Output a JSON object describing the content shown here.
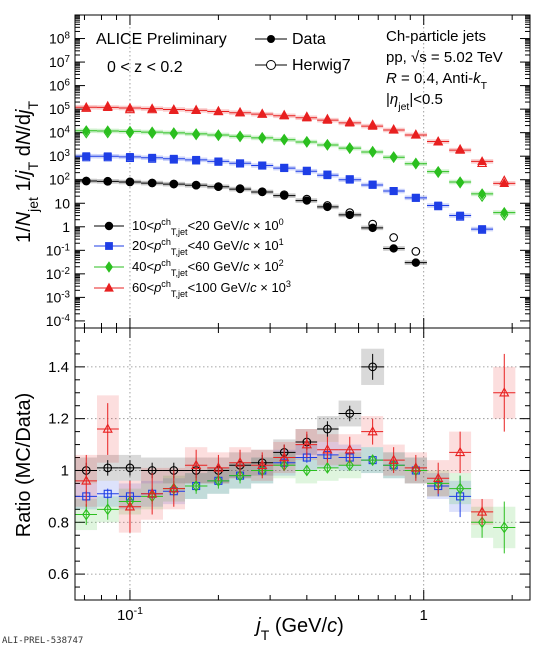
{
  "watermark": "ALI-PREL-538747",
  "chart_data": [
    {
      "type": "scatter",
      "panel": "spectra",
      "x_scale": "log",
      "y_scale": "log",
      "xlim": [
        0.065,
        2.3
      ],
      "ylim": [
        5e-05,
        1000000000.0
      ],
      "ylabel": "1/N_jet 1/j_T dN/dj_T",
      "y_ticklabels": [
        "10^{-4}",
        "10^{-3}",
        "10^{-2}",
        "10^{-1}",
        "1",
        "10",
        "10^{2}",
        "10^{3}",
        "10^{4}",
        "10^{5}",
        "10^{6}",
        "10^{7}",
        "10^{8}"
      ],
      "annotations": {
        "preliminary": "ALICE Preliminary",
        "z_range": "0 < z < 0.2",
        "title": "Ch-particle jets",
        "system": "pp, √s = 5.02 TeV",
        "jet_def": "R = 0.4, Anti-kT",
        "eta_cut": "|η_jet|<0.5"
      },
      "legend_top": {
        "placement": "top-center",
        "entries": [
          {
            "label": "Data",
            "marker": "filled-circle"
          },
          {
            "label": "Herwig7",
            "marker": "open-circle"
          }
        ]
      },
      "legend_bins": {
        "placement": "lower-left",
        "entries": [
          "10<p^{ch}_{T,jet}<20 GeV/c × 10^0",
          "20<p^{ch}_{T,jet}<40 GeV/c × 10^1",
          "40<p^{ch}_{T,jet}<60 GeV/c × 10^2",
          "60<p^{ch}_{T,jet}<100 GeV/c × 10^3"
        ]
      },
      "series": [
        {
          "name": "10<p^{ch}_{T,jet}<20 GeV/c × 10^0",
          "color": "#000000",
          "data_marker": "circle",
          "x": [
            0.071,
            0.084,
            0.1,
            0.119,
            0.141,
            0.168,
            0.2,
            0.237,
            0.282,
            0.335,
            0.4,
            0.47,
            0.56,
            0.67,
            0.79,
            0.94
          ],
          "data": [
            88,
            85,
            80,
            72,
            65,
            58,
            50,
            40,
            30,
            21,
            13,
            7,
            3.2,
            0.9,
            0.12,
            0.03
          ],
          "mc": [
            88,
            86,
            81,
            73,
            66,
            59,
            51,
            42,
            31,
            23,
            15,
            8,
            4,
            1.3,
            0.35,
            0.09
          ]
        },
        {
          "name": "20<p^{ch}_{T,jet}<40 GeV/c × 10^1",
          "color": "#1e3ee6",
          "data_marker": "square",
          "x": [
            0.071,
            0.084,
            0.1,
            0.119,
            0.141,
            0.168,
            0.2,
            0.237,
            0.282,
            0.335,
            0.4,
            0.47,
            0.56,
            0.67,
            0.79,
            0.94,
            1.12,
            1.33,
            1.58
          ],
          "data": [
            1000,
            990,
            930,
            860,
            780,
            700,
            600,
            500,
            400,
            310,
            230,
            155,
            100,
            60,
            33,
            17,
            8,
            3,
            0.8
          ],
          "mc": [
            900,
            900,
            840,
            780,
            720,
            660,
            580,
            490,
            400,
            320,
            240,
            165,
            105,
            62,
            33,
            17,
            7.5,
            2.7,
            0.75
          ]
        },
        {
          "name": "40<p^{ch}_{T,jet}<60 GeV/c × 10^2",
          "color": "#2bbf1f",
          "data_marker": "diamond",
          "x": [
            0.071,
            0.084,
            0.1,
            0.119,
            0.141,
            0.168,
            0.2,
            0.237,
            0.282,
            0.335,
            0.4,
            0.47,
            0.56,
            0.67,
            0.79,
            0.94,
            1.12,
            1.33,
            1.58,
            1.88
          ],
          "data": [
            12000,
            11800,
            11300,
            10600,
            9800,
            8900,
            8000,
            7000,
            6000,
            5000,
            4000,
            3000,
            2200,
            1500,
            900,
            480,
            220,
            80,
            25,
            4
          ],
          "mc": [
            10000,
            10100,
            10000,
            9600,
            9100,
            8400,
            7700,
            6900,
            6000,
            5100,
            4100,
            3050,
            2200,
            1550,
            920,
            490,
            210,
            75,
            20,
            3.2
          ]
        },
        {
          "name": "60<p^{ch}_{T,jet}<100 GeV/c × 10^3",
          "color": "#e82020",
          "data_marker": "triangle",
          "x": [
            0.071,
            0.084,
            0.1,
            0.119,
            0.141,
            0.168,
            0.2,
            0.237,
            0.282,
            0.335,
            0.4,
            0.47,
            0.56,
            0.67,
            0.79,
            0.94,
            1.12,
            1.33,
            1.58,
            1.88
          ],
          "data": [
            120000,
            118000,
            112000,
            105000,
            97000,
            88000,
            79000,
            70000,
            61000,
            52000,
            43000,
            34000,
            26000,
            19000,
            13000,
            8000,
            4200,
            1800,
            600,
            70
          ],
          "mc": [
            110000,
            130000,
            97000,
            96000,
            90000,
            90000,
            80000,
            72000,
            62000,
            55000,
            47000,
            37000,
            28000,
            21500,
            13500,
            8100,
            4100,
            1920,
            500,
            90
          ]
        }
      ]
    },
    {
      "type": "scatter",
      "panel": "ratio",
      "x_scale": "log",
      "xlim": [
        0.065,
        2.3
      ],
      "ylim": [
        0.5,
        1.55
      ],
      "ylabel": "Ratio (MC/Data)",
      "xlabel": "j_T (GeV/c)",
      "x_ticklabels": [
        "10^{-1}",
        "1"
      ],
      "y_ticklabels": [
        "0.6",
        "0.8",
        "1",
        "1.2",
        "1.4"
      ],
      "series": [
        {
          "name": "10<p^{ch}_{T,jet}<20 GeV/c × 10^0",
          "color": "#000000",
          "x": [
            0.071,
            0.084,
            0.1,
            0.119,
            0.141,
            0.168,
            0.2,
            0.237,
            0.282,
            0.335,
            0.4,
            0.47,
            0.56,
            0.67
          ],
          "y": [
            1.0,
            1.01,
            1.01,
            1.0,
            1.0,
            1.0,
            1.0,
            1.02,
            1.03,
            1.07,
            1.11,
            1.16,
            1.22,
            1.4
          ],
          "err": [
            0.03,
            0.03,
            0.03,
            0.03,
            0.03,
            0.03,
            0.03,
            0.03,
            0.03,
            0.03,
            0.03,
            0.03,
            0.03,
            0.05
          ],
          "band": [
            0.05,
            0.05,
            0.05,
            0.05,
            0.05,
            0.05,
            0.05,
            0.05,
            0.05,
            0.05,
            0.05,
            0.05,
            0.05,
            0.07
          ]
        },
        {
          "name": "20<p^{ch}_{T,jet}<40 GeV/c × 10^1",
          "color": "#1e3ee6",
          "x": [
            0.071,
            0.084,
            0.1,
            0.119,
            0.141,
            0.168,
            0.2,
            0.237,
            0.282,
            0.335,
            0.4,
            0.47,
            0.56,
            0.67,
            0.79,
            0.94,
            1.12,
            1.33
          ],
          "y": [
            0.9,
            0.91,
            0.9,
            0.91,
            0.92,
            0.94,
            0.96,
            0.98,
            1.0,
            1.03,
            1.05,
            1.06,
            1.05,
            1.04,
            1.02,
            1.0,
            0.94,
            0.9
          ],
          "err": [
            0.02,
            0.02,
            0.02,
            0.02,
            0.02,
            0.02,
            0.02,
            0.02,
            0.02,
            0.02,
            0.02,
            0.02,
            0.02,
            0.02,
            0.02,
            0.03,
            0.04,
            0.08
          ],
          "band": [
            0.05,
            0.05,
            0.05,
            0.05,
            0.05,
            0.05,
            0.05,
            0.05,
            0.05,
            0.05,
            0.05,
            0.05,
            0.05,
            0.05,
            0.05,
            0.05,
            0.05,
            0.06
          ]
        },
        {
          "name": "40<p^{ch}_{T,jet}<60 GeV/c × 10^2",
          "color": "#2bbf1f",
          "x": [
            0.071,
            0.084,
            0.1,
            0.119,
            0.141,
            0.168,
            0.2,
            0.237,
            0.282,
            0.335,
            0.4,
            0.47,
            0.56,
            0.67,
            0.79,
            0.94,
            1.12,
            1.33,
            1.58,
            1.88
          ],
          "y": [
            0.83,
            0.85,
            0.88,
            0.9,
            0.93,
            0.94,
            0.96,
            0.98,
            1.0,
            1.02,
            1.0,
            1.01,
            1.02,
            1.04,
            1.02,
            1.0,
            0.95,
            0.93,
            0.8,
            0.78
          ],
          "err": [
            0.04,
            0.04,
            0.03,
            0.03,
            0.03,
            0.03,
            0.03,
            0.03,
            0.02,
            0.02,
            0.02,
            0.02,
            0.02,
            0.02,
            0.02,
            0.03,
            0.03,
            0.05,
            0.06,
            0.1
          ],
          "band": [
            0.06,
            0.05,
            0.05,
            0.05,
            0.05,
            0.05,
            0.05,
            0.05,
            0.05,
            0.05,
            0.05,
            0.05,
            0.05,
            0.05,
            0.05,
            0.05,
            0.05,
            0.06,
            0.06,
            0.08
          ]
        },
        {
          "name": "60<p^{ch}_{T,jet}<100 GeV/c × 10^3",
          "color": "#e82020",
          "x": [
            0.071,
            0.084,
            0.1,
            0.119,
            0.141,
            0.168,
            0.2,
            0.237,
            0.282,
            0.335,
            0.4,
            0.47,
            0.56,
            0.67,
            0.79,
            0.94,
            1.12,
            1.33,
            1.58,
            1.88
          ],
          "y": [
            0.96,
            1.16,
            0.86,
            0.91,
            0.93,
            1.02,
            1.01,
            1.03,
            1.02,
            1.05,
            1.1,
            1.08,
            1.08,
            1.15,
            1.04,
            1.01,
            0.97,
            1.07,
            0.84,
            1.3
          ],
          "err": [
            0.1,
            0.1,
            0.1,
            0.08,
            0.07,
            0.06,
            0.05,
            0.05,
            0.05,
            0.05,
            0.05,
            0.05,
            0.05,
            0.05,
            0.05,
            0.05,
            0.06,
            0.08,
            0.05,
            0.15
          ],
          "band": [
            0.1,
            0.13,
            0.1,
            0.1,
            0.08,
            0.07,
            0.06,
            0.06,
            0.06,
            0.06,
            0.06,
            0.06,
            0.06,
            0.06,
            0.06,
            0.06,
            0.07,
            0.08,
            0.05,
            0.1
          ]
        }
      ]
    }
  ]
}
